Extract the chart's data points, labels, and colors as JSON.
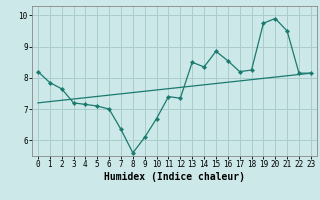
{
  "title": "",
  "xlabel": "Humidex (Indice chaleur)",
  "bg_color": "#cce8e8",
  "grid_color": "#aacccc",
  "line_color": "#1a7a6e",
  "xlim": [
    -0.5,
    23.5
  ],
  "ylim": [
    5.5,
    10.3
  ],
  "yticks": [
    6,
    7,
    8,
    9,
    10
  ],
  "xticks": [
    0,
    1,
    2,
    3,
    4,
    5,
    6,
    7,
    8,
    9,
    10,
    11,
    12,
    13,
    14,
    15,
    16,
    17,
    18,
    19,
    20,
    21,
    22,
    23
  ],
  "line1_x": [
    0,
    1,
    2,
    3,
    4,
    5,
    6,
    7,
    8,
    9,
    10,
    11,
    12,
    13,
    14,
    15,
    16,
    17,
    18,
    19,
    20,
    21,
    22,
    23
  ],
  "line1_y": [
    8.2,
    7.85,
    7.65,
    7.2,
    7.15,
    7.1,
    7.0,
    6.35,
    5.6,
    6.1,
    6.7,
    7.4,
    7.35,
    8.5,
    8.35,
    8.85,
    8.55,
    8.2,
    8.25,
    9.75,
    9.9,
    9.5,
    8.15,
    8.15
  ],
  "line2_x": [
    0,
    23
  ],
  "line2_y": [
    7.2,
    8.15
  ]
}
